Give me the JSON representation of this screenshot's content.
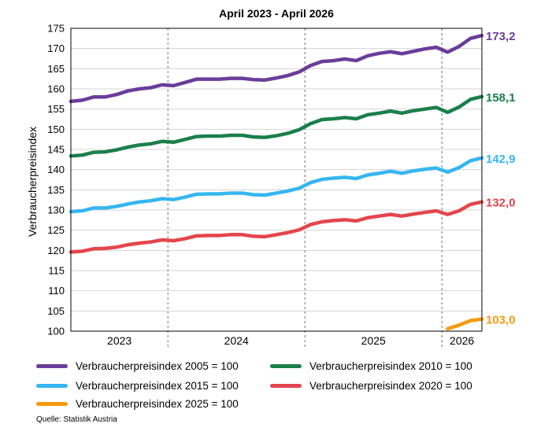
{
  "chart_data": {
    "type": "line",
    "title": "April 2023 - April 2026",
    "ylabel": "Verbraucherpreisindex",
    "ylim": [
      100,
      175
    ],
    "yticks": [
      100,
      105,
      110,
      115,
      120,
      125,
      130,
      135,
      140,
      145,
      150,
      155,
      160,
      165,
      170,
      175
    ],
    "x": [
      "2023-04",
      "2023-05",
      "2023-06",
      "2023-07",
      "2023-08",
      "2023-09",
      "2023-10",
      "2023-11",
      "2023-12",
      "2024-01",
      "2024-02",
      "2024-03",
      "2024-04",
      "2024-05",
      "2024-06",
      "2024-07",
      "2024-08",
      "2024-09",
      "2024-10",
      "2024-11",
      "2024-12",
      "2025-01",
      "2025-02",
      "2025-03",
      "2025-04",
      "2025-05",
      "2025-06",
      "2025-07",
      "2025-08",
      "2025-09",
      "2025-10",
      "2025-11",
      "2025-12",
      "2026-01",
      "2026-02",
      "2026-03",
      "2026-04"
    ],
    "year_labels": [
      "2023",
      "2024",
      "2025",
      "2026"
    ],
    "grid": true,
    "legend_position": "bottom",
    "series": [
      {
        "name": "Verbraucherpreisindex 2005 = 100",
        "color": "#6a3d9a",
        "end_label": "173,2",
        "values": [
          156.9,
          157.2,
          158.0,
          158.0,
          158.6,
          159.5,
          160.0,
          160.3,
          161.0,
          160.8,
          161.6,
          162.4,
          162.4,
          162.4,
          162.6,
          162.6,
          162.3,
          162.2,
          162.7,
          163.3,
          164.2,
          165.8,
          166.8,
          167.0,
          167.4,
          167.0,
          168.2,
          168.8,
          169.2,
          168.7,
          169.3,
          169.9,
          170.3,
          169.1,
          170.5,
          172.5,
          173.2
        ]
      },
      {
        "name": "Verbraucherpreisindex 2010 = 100",
        "color": "#1a7f4b",
        "end_label": "158,1",
        "values": [
          143.4,
          143.6,
          144.3,
          144.4,
          144.9,
          145.6,
          146.1,
          146.4,
          147.0,
          146.8,
          147.5,
          148.2,
          148.3,
          148.3,
          148.5,
          148.5,
          148.1,
          148.0,
          148.4,
          149.0,
          149.9,
          151.4,
          152.4,
          152.6,
          152.9,
          152.6,
          153.6,
          154.0,
          154.5,
          154.0,
          154.6,
          155.0,
          155.4,
          154.2,
          155.5,
          157.4,
          158.1
        ]
      },
      {
        "name": "Verbraucherpreisindex 2015 = 100",
        "color": "#35b6f0",
        "end_label": "142,9",
        "values": [
          129.6,
          129.8,
          130.5,
          130.5,
          130.9,
          131.5,
          132.0,
          132.3,
          132.8,
          132.6,
          133.2,
          133.9,
          134.0,
          134.0,
          134.2,
          134.2,
          133.8,
          133.7,
          134.2,
          134.7,
          135.4,
          136.8,
          137.6,
          137.9,
          138.1,
          137.8,
          138.7,
          139.1,
          139.6,
          139.1,
          139.7,
          140.1,
          140.4,
          139.4,
          140.5,
          142.2,
          142.9
        ]
      },
      {
        "name": "Verbraucherpreisindex 2020 = 100",
        "color": "#e5454c",
        "end_label": "132,0",
        "values": [
          119.6,
          119.8,
          120.4,
          120.5,
          120.8,
          121.4,
          121.8,
          122.1,
          122.6,
          122.4,
          122.9,
          123.6,
          123.7,
          123.7,
          123.9,
          123.9,
          123.5,
          123.4,
          123.9,
          124.4,
          125.1,
          126.4,
          127.1,
          127.4,
          127.6,
          127.3,
          128.1,
          128.5,
          128.9,
          128.5,
          129.0,
          129.4,
          129.8,
          128.9,
          129.8,
          131.4,
          132.0
        ]
      },
      {
        "name": "Verbraucherpreisindex 2025 = 100",
        "color": "#f59a0e",
        "end_label": "103,0",
        "values": [
          null,
          null,
          null,
          null,
          null,
          null,
          null,
          null,
          null,
          null,
          null,
          null,
          null,
          null,
          null,
          null,
          null,
          null,
          null,
          null,
          null,
          null,
          null,
          null,
          null,
          null,
          null,
          null,
          null,
          null,
          null,
          null,
          null,
          100.6,
          101.5,
          102.6,
          103.0
        ]
      }
    ]
  },
  "source": "Quelle: Statistik Austria"
}
